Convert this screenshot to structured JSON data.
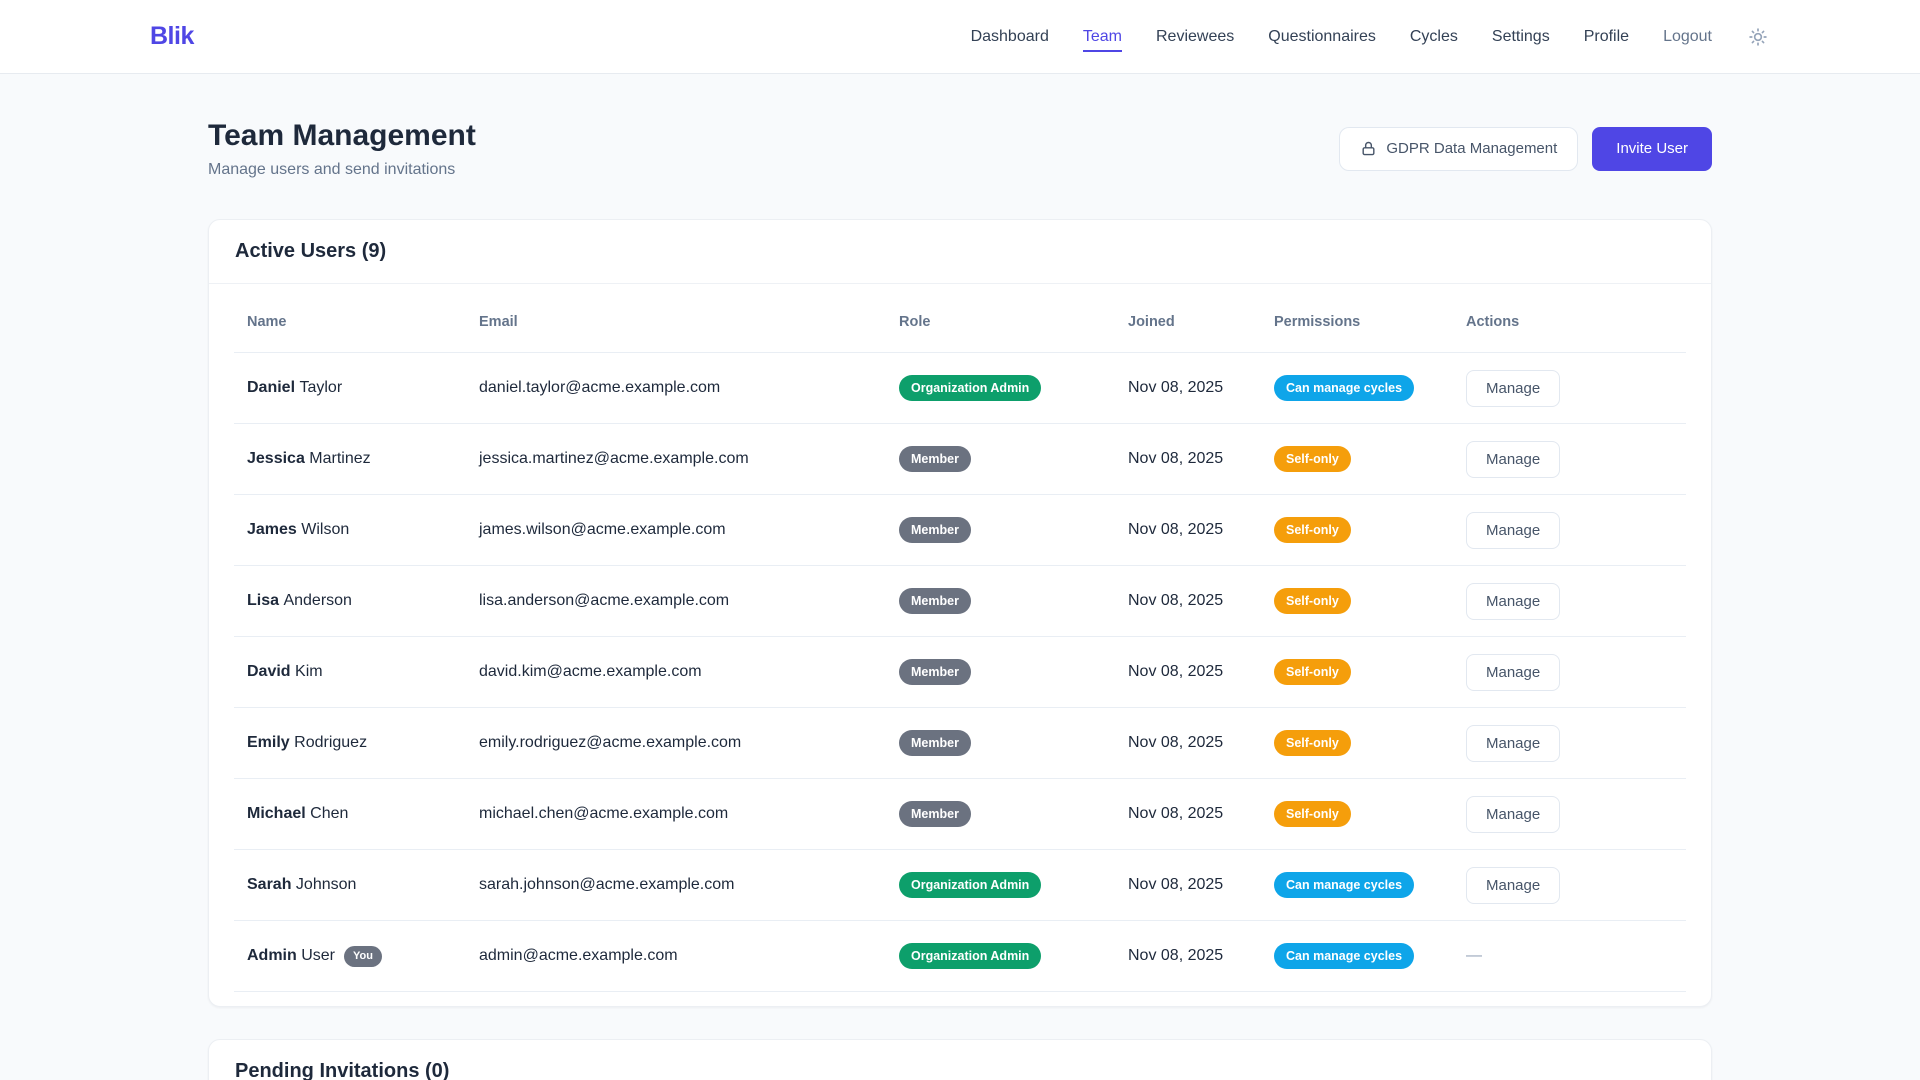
{
  "brand": {
    "logo": "Blik"
  },
  "navbar": {
    "items": [
      {
        "label": "Dashboard",
        "active": false
      },
      {
        "label": "Team",
        "active": true
      },
      {
        "label": "Reviewees",
        "active": false
      },
      {
        "label": "Questionnaires",
        "active": false
      },
      {
        "label": "Cycles",
        "active": false
      },
      {
        "label": "Settings",
        "active": false
      },
      {
        "label": "Profile",
        "active": false
      }
    ],
    "logout_label": "Logout",
    "theme_icon": "sun-icon"
  },
  "page": {
    "title": "Team Management",
    "subtitle": "Manage users and send invitations",
    "gdpr_button": "GDPR Data Management",
    "invite_button": "Invite User"
  },
  "active_users": {
    "heading": "Active Users (9)",
    "columns": [
      {
        "key": "name",
        "label": "Name"
      },
      {
        "key": "email",
        "label": "Email"
      },
      {
        "key": "role",
        "label": "Role"
      },
      {
        "key": "joined",
        "label": "Joined"
      },
      {
        "key": "permissions",
        "label": "Permissions"
      },
      {
        "key": "actions",
        "label": "Actions"
      }
    ],
    "manage_label": "Manage",
    "you_badge": "You",
    "no_action": "—",
    "rows": [
      {
        "first": "Daniel",
        "last": "Taylor",
        "you": false,
        "email": "daniel.taylor@acme.example.com",
        "role": "Organization Admin",
        "role_variant": "admin",
        "joined": "Nov 08, 2025",
        "permission": "Can manage cycles",
        "permission_variant": "cycles",
        "action": "manage"
      },
      {
        "first": "Jessica",
        "last": "Martinez",
        "you": false,
        "email": "jessica.martinez@acme.example.com",
        "role": "Member",
        "role_variant": "member",
        "joined": "Nov 08, 2025",
        "permission": "Self-only",
        "permission_variant": "self",
        "action": "manage"
      },
      {
        "first": "James",
        "last": "Wilson",
        "you": false,
        "email": "james.wilson@acme.example.com",
        "role": "Member",
        "role_variant": "member",
        "joined": "Nov 08, 2025",
        "permission": "Self-only",
        "permission_variant": "self",
        "action": "manage"
      },
      {
        "first": "Lisa",
        "last": "Anderson",
        "you": false,
        "email": "lisa.anderson@acme.example.com",
        "role": "Member",
        "role_variant": "member",
        "joined": "Nov 08, 2025",
        "permission": "Self-only",
        "permission_variant": "self",
        "action": "manage"
      },
      {
        "first": "David",
        "last": "Kim",
        "you": false,
        "email": "david.kim@acme.example.com",
        "role": "Member",
        "role_variant": "member",
        "joined": "Nov 08, 2025",
        "permission": "Self-only",
        "permission_variant": "self",
        "action": "manage"
      },
      {
        "first": "Emily",
        "last": "Rodriguez",
        "you": false,
        "email": "emily.rodriguez@acme.example.com",
        "role": "Member",
        "role_variant": "member",
        "joined": "Nov 08, 2025",
        "permission": "Self-only",
        "permission_variant": "self",
        "action": "manage"
      },
      {
        "first": "Michael",
        "last": "Chen",
        "you": false,
        "email": "michael.chen@acme.example.com",
        "role": "Member",
        "role_variant": "member",
        "joined": "Nov 08, 2025",
        "permission": "Self-only",
        "permission_variant": "self",
        "action": "manage"
      },
      {
        "first": "Sarah",
        "last": "Johnson",
        "you": false,
        "email": "sarah.johnson@acme.example.com",
        "role": "Organization Admin",
        "role_variant": "admin",
        "joined": "Nov 08, 2025",
        "permission": "Can manage cycles",
        "permission_variant": "cycles",
        "action": "manage"
      },
      {
        "first": "Admin",
        "last": "User",
        "you": true,
        "email": "admin@acme.example.com",
        "role": "Organization Admin",
        "role_variant": "admin",
        "joined": "Nov 08, 2025",
        "permission": "Can manage cycles",
        "permission_variant": "cycles",
        "action": "none"
      }
    ]
  },
  "pending": {
    "heading": "Pending Invitations (0)"
  },
  "colors": {
    "accent": "#4f46e5",
    "role_admin": "#0d9f6b",
    "role_member": "#6b7280",
    "perm_cycles": "#0ea5e9",
    "perm_self": "#f59e0b"
  }
}
